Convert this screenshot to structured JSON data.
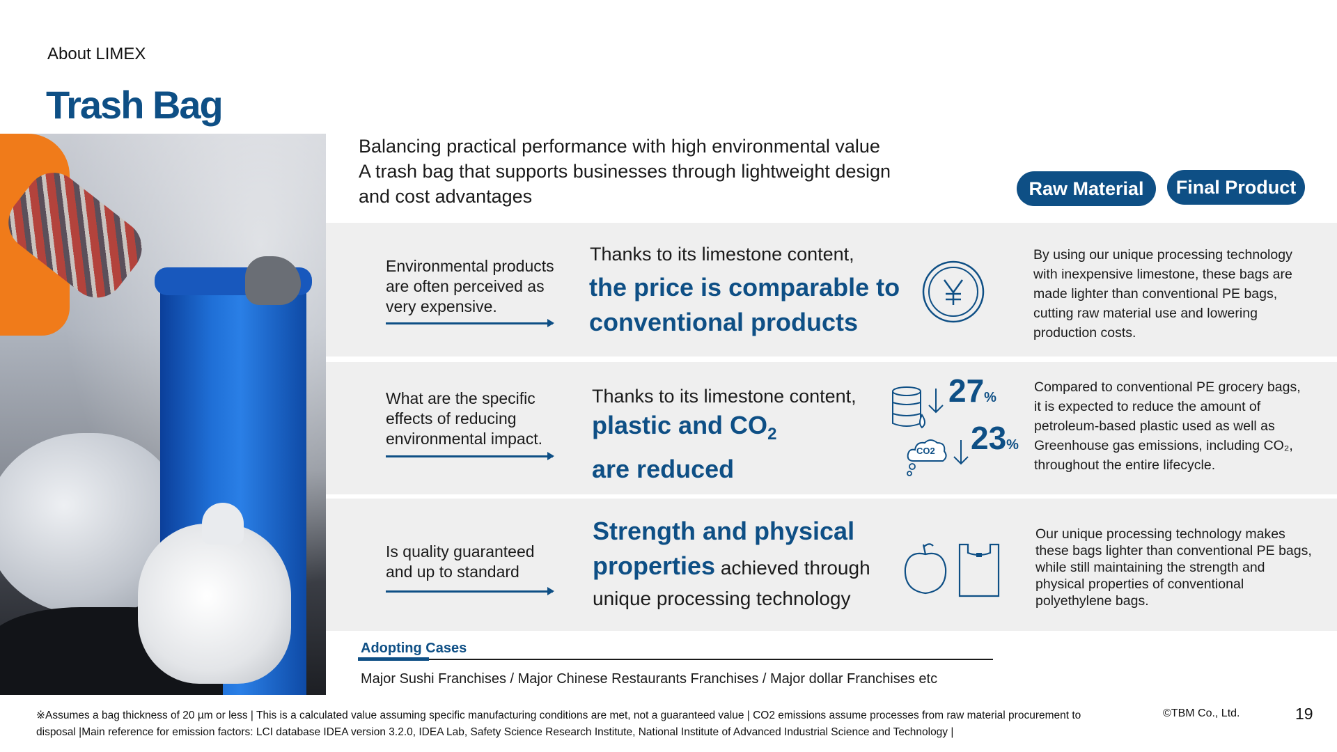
{
  "header": {
    "breadcrumb": "About LIMEX",
    "title": "Trash Bag"
  },
  "intro": {
    "line1": "Balancing practical performance with high environmental value",
    "line2": "A trash bag that supports businesses through lightweight design",
    "line3": "and cost advantages"
  },
  "tags": {
    "raw_material": "Raw Material",
    "final_product": "Final Product"
  },
  "rows": [
    {
      "question": [
        "Environmental products",
        "are often perceived as",
        "very expensive."
      ],
      "lead": "Thanks to its limestone content,",
      "headline": [
        "the price is comparable to",
        "conventional products"
      ],
      "icon": "yen-coin-icon",
      "description": [
        "By using our unique processing technology",
        "with inexpensive limestone, these bags are",
        "made lighter than conventional PE bags,",
        "cutting raw material use and lowering",
        "production costs."
      ]
    },
    {
      "question": [
        "What are the specific",
        "effects of reducing",
        "environmental impact."
      ],
      "lead": "Thanks to its limestone content,",
      "headline": [
        "plastic and CO",
        "2",
        "are reduced"
      ],
      "stats": [
        {
          "icon": "oil-barrel-icon",
          "value": "27",
          "unit": "%"
        },
        {
          "icon": "co2-cloud-icon",
          "value": "23",
          "unit": "%",
          "cloud_label": "CO2"
        }
      ],
      "description": [
        "Compared to conventional PE grocery bags,",
        "it is expected to reduce the amount of",
        "petroleum-based plastic used as well as",
        "Greenhouse gas emissions, including CO₂,",
        "throughout the entire lifecycle."
      ]
    },
    {
      "question": [
        "Is quality guaranteed",
        "and up to standard"
      ],
      "headline": [
        "Strength and physical",
        "properties"
      ],
      "headline_rest": " achieved through",
      "headline_tail": "unique processing technology",
      "icons": [
        "fruit-icon",
        "shopping-bag-icon"
      ],
      "description": [
        "Our unique processing technology makes",
        "these bags lighter than conventional PE bags,",
        "while still maintaining the strength and",
        "physical properties of conventional",
        "polyethylene bags."
      ]
    }
  ],
  "adopting": {
    "label": "Adopting Cases",
    "text": "Major Sushi Franchises / Major Chinese Restaurants Franchises / Major dollar Franchises etc"
  },
  "footer": {
    "note_line1": "※Assumes a bag thickness of 20 µm or less | This is a calculated value assuming specific manufacturing conditions are met, not a guaranteed value | CO2 emissions assume processes from raw material procurement to",
    "note_line2": "disposal |Main reference for emission factors: LCI database IDEA version 3.2.0, IDEA Lab, Safety Science Research Institute, National Institute of Advanced Industrial Science and Technology |",
    "copyright": "©TBM Co., Ltd.",
    "page_number": "19"
  },
  "colors": {
    "brand_blue": "#0e4f85",
    "row_background": "#efefef"
  }
}
